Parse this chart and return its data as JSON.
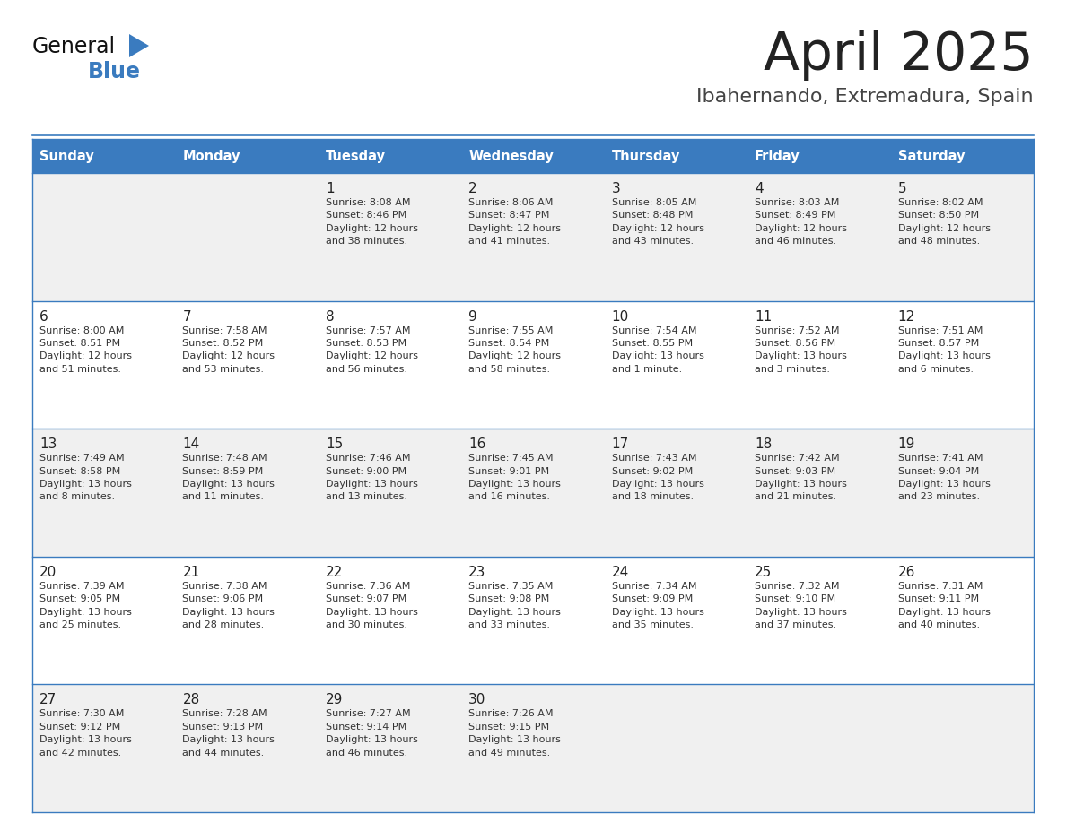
{
  "title": "April 2025",
  "subtitle": "Ibahernando, Extremadura, Spain",
  "days_of_week": [
    "Sunday",
    "Monday",
    "Tuesday",
    "Wednesday",
    "Thursday",
    "Friday",
    "Saturday"
  ],
  "header_bg": "#3a7bbf",
  "header_text": "#ffffff",
  "cell_bg_odd": "#f0f0f0",
  "cell_bg_even": "#ffffff",
  "cell_border": "#3a7bbf",
  "separator_color": "#3a7bbf",
  "day_number_color": "#222222",
  "cell_text_color": "#333333",
  "title_color": "#222222",
  "subtitle_color": "#444444",
  "logo_general_color": "#111111",
  "logo_blue_color": "#3a7bbf",
  "calendar": [
    [
      {
        "day": null,
        "info": ""
      },
      {
        "day": null,
        "info": ""
      },
      {
        "day": 1,
        "info": "Sunrise: 8:08 AM\nSunset: 8:46 PM\nDaylight: 12 hours\nand 38 minutes."
      },
      {
        "day": 2,
        "info": "Sunrise: 8:06 AM\nSunset: 8:47 PM\nDaylight: 12 hours\nand 41 minutes."
      },
      {
        "day": 3,
        "info": "Sunrise: 8:05 AM\nSunset: 8:48 PM\nDaylight: 12 hours\nand 43 minutes."
      },
      {
        "day": 4,
        "info": "Sunrise: 8:03 AM\nSunset: 8:49 PM\nDaylight: 12 hours\nand 46 minutes."
      },
      {
        "day": 5,
        "info": "Sunrise: 8:02 AM\nSunset: 8:50 PM\nDaylight: 12 hours\nand 48 minutes."
      }
    ],
    [
      {
        "day": 6,
        "info": "Sunrise: 8:00 AM\nSunset: 8:51 PM\nDaylight: 12 hours\nand 51 minutes."
      },
      {
        "day": 7,
        "info": "Sunrise: 7:58 AM\nSunset: 8:52 PM\nDaylight: 12 hours\nand 53 minutes."
      },
      {
        "day": 8,
        "info": "Sunrise: 7:57 AM\nSunset: 8:53 PM\nDaylight: 12 hours\nand 56 minutes."
      },
      {
        "day": 9,
        "info": "Sunrise: 7:55 AM\nSunset: 8:54 PM\nDaylight: 12 hours\nand 58 minutes."
      },
      {
        "day": 10,
        "info": "Sunrise: 7:54 AM\nSunset: 8:55 PM\nDaylight: 13 hours\nand 1 minute."
      },
      {
        "day": 11,
        "info": "Sunrise: 7:52 AM\nSunset: 8:56 PM\nDaylight: 13 hours\nand 3 minutes."
      },
      {
        "day": 12,
        "info": "Sunrise: 7:51 AM\nSunset: 8:57 PM\nDaylight: 13 hours\nand 6 minutes."
      }
    ],
    [
      {
        "day": 13,
        "info": "Sunrise: 7:49 AM\nSunset: 8:58 PM\nDaylight: 13 hours\nand 8 minutes."
      },
      {
        "day": 14,
        "info": "Sunrise: 7:48 AM\nSunset: 8:59 PM\nDaylight: 13 hours\nand 11 minutes."
      },
      {
        "day": 15,
        "info": "Sunrise: 7:46 AM\nSunset: 9:00 PM\nDaylight: 13 hours\nand 13 minutes."
      },
      {
        "day": 16,
        "info": "Sunrise: 7:45 AM\nSunset: 9:01 PM\nDaylight: 13 hours\nand 16 minutes."
      },
      {
        "day": 17,
        "info": "Sunrise: 7:43 AM\nSunset: 9:02 PM\nDaylight: 13 hours\nand 18 minutes."
      },
      {
        "day": 18,
        "info": "Sunrise: 7:42 AM\nSunset: 9:03 PM\nDaylight: 13 hours\nand 21 minutes."
      },
      {
        "day": 19,
        "info": "Sunrise: 7:41 AM\nSunset: 9:04 PM\nDaylight: 13 hours\nand 23 minutes."
      }
    ],
    [
      {
        "day": 20,
        "info": "Sunrise: 7:39 AM\nSunset: 9:05 PM\nDaylight: 13 hours\nand 25 minutes."
      },
      {
        "day": 21,
        "info": "Sunrise: 7:38 AM\nSunset: 9:06 PM\nDaylight: 13 hours\nand 28 minutes."
      },
      {
        "day": 22,
        "info": "Sunrise: 7:36 AM\nSunset: 9:07 PM\nDaylight: 13 hours\nand 30 minutes."
      },
      {
        "day": 23,
        "info": "Sunrise: 7:35 AM\nSunset: 9:08 PM\nDaylight: 13 hours\nand 33 minutes."
      },
      {
        "day": 24,
        "info": "Sunrise: 7:34 AM\nSunset: 9:09 PM\nDaylight: 13 hours\nand 35 minutes."
      },
      {
        "day": 25,
        "info": "Sunrise: 7:32 AM\nSunset: 9:10 PM\nDaylight: 13 hours\nand 37 minutes."
      },
      {
        "day": 26,
        "info": "Sunrise: 7:31 AM\nSunset: 9:11 PM\nDaylight: 13 hours\nand 40 minutes."
      }
    ],
    [
      {
        "day": 27,
        "info": "Sunrise: 7:30 AM\nSunset: 9:12 PM\nDaylight: 13 hours\nand 42 minutes."
      },
      {
        "day": 28,
        "info": "Sunrise: 7:28 AM\nSunset: 9:13 PM\nDaylight: 13 hours\nand 44 minutes."
      },
      {
        "day": 29,
        "info": "Sunrise: 7:27 AM\nSunset: 9:14 PM\nDaylight: 13 hours\nand 46 minutes."
      },
      {
        "day": 30,
        "info": "Sunrise: 7:26 AM\nSunset: 9:15 PM\nDaylight: 13 hours\nand 49 minutes."
      },
      {
        "day": null,
        "info": ""
      },
      {
        "day": null,
        "info": ""
      },
      {
        "day": null,
        "info": ""
      }
    ]
  ],
  "fig_width": 11.88,
  "fig_height": 9.18,
  "fig_dpi": 100
}
